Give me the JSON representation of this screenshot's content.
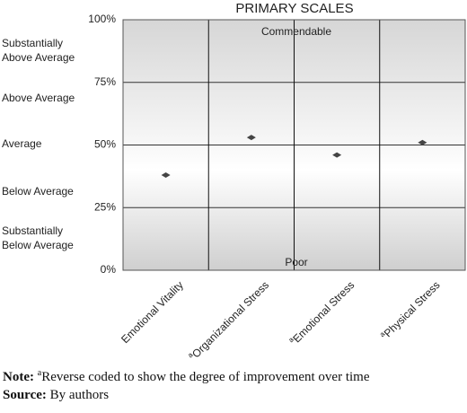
{
  "chart_data": {
    "type": "scatter",
    "title": "PRIMARY SCALES",
    "categories": [
      "Emotional Vitality",
      "Organizational Stress",
      "Emotional Stress",
      "Physical Stress"
    ],
    "reverse_coded": [
      false,
      true,
      true,
      true
    ],
    "values": [
      38,
      53,
      46,
      51
    ],
    "color": "#444444",
    "ylim": [
      0,
      100
    ],
    "yticks": [
      {
        "value": 0,
        "label": "0%"
      },
      {
        "value": 25,
        "label": "25%"
      },
      {
        "value": 50,
        "label": "50%"
      },
      {
        "value": 75,
        "label": "75%"
      },
      {
        "value": 100,
        "label": "100%"
      }
    ],
    "grid": true,
    "band_labels": [
      "Substantially Above Average",
      "Above Average",
      "Average",
      "Below Average",
      "Substantially Below Average"
    ],
    "annotations": {
      "top": "Commendable",
      "bottom": "Poor"
    }
  },
  "note": {
    "label": "Note:",
    "marker": "a",
    "text": "Reverse coded to show the degree of improvement over time"
  },
  "source": {
    "label": "Source:",
    "text": "By authors"
  }
}
